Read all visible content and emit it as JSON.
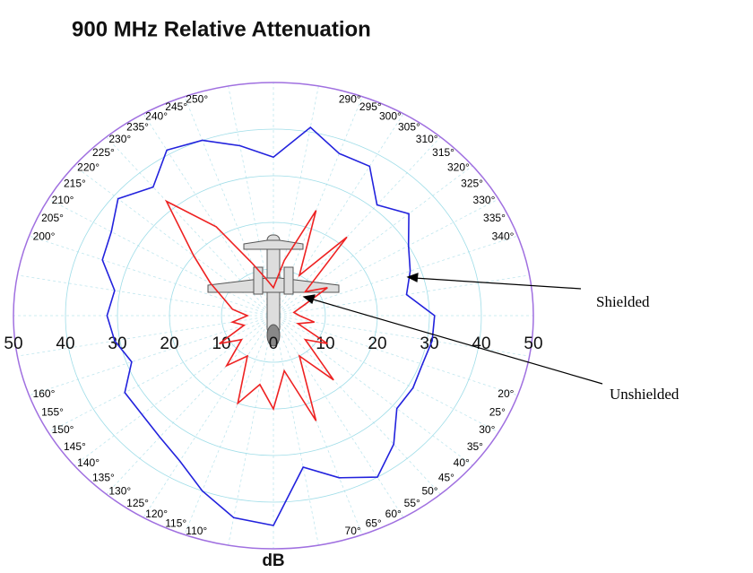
{
  "chart_data": {
    "type": "polar",
    "title": "900 MHz Relative Attenuation",
    "radial_label": "dB",
    "x": [
      0,
      10,
      20,
      30,
      40,
      50,
      60,
      70,
      80,
      90,
      100,
      110,
      120,
      130,
      140,
      150,
      160,
      170,
      180,
      190,
      200,
      210,
      220,
      230,
      240,
      250,
      260,
      270,
      280,
      290,
      300,
      310,
      320,
      330,
      340,
      350
    ],
    "series": [
      {
        "name": "Shielded",
        "color": "#2222dd",
        "values": [
          31,
          31,
          30.5,
          31,
          31,
          36,
          40,
          37,
          33,
          45,
          44,
          40,
          36,
          34,
          33,
          33,
          29,
          31,
          32,
          31,
          35,
          36,
          39,
          36,
          41,
          40,
          37,
          34,
          41,
          37,
          37,
          31,
          34,
          30,
          28,
          26
        ]
      },
      {
        "name": "Unshielded",
        "color": "#ee2222",
        "values": [
          5,
          8,
          5,
          12,
          8,
          18,
          10,
          24,
          12,
          20,
          15,
          20,
          10,
          14,
          8,
          12,
          6,
          8,
          5,
          8,
          10,
          14,
          20,
          32,
          22,
          12,
          8,
          6,
          12,
          24,
          10,
          22,
          8,
          12,
          6,
          4
        ]
      }
    ],
    "rlim": [
      0,
      50
    ],
    "rticks": [
      0,
      10,
      20,
      30,
      40,
      50
    ],
    "grid": true,
    "angle_ticks": [
      {
        "value": 20,
        "label": "20°"
      },
      {
        "value": 25,
        "label": "25°"
      },
      {
        "value": 30,
        "label": "30°"
      },
      {
        "value": 35,
        "label": "35°"
      },
      {
        "value": 40,
        "label": "40°"
      },
      {
        "value": 45,
        "label": "45°"
      },
      {
        "value": 50,
        "label": "50°"
      },
      {
        "value": 55,
        "label": "55°"
      },
      {
        "value": 60,
        "label": "60°"
      },
      {
        "value": 65,
        "label": "65°"
      },
      {
        "value": 70,
        "label": "70°"
      },
      {
        "value": 110,
        "label": "110°"
      },
      {
        "value": 115,
        "label": "115°"
      },
      {
        "value": 120,
        "label": "120°"
      },
      {
        "value": 125,
        "label": "125°"
      },
      {
        "value": 130,
        "label": "130°"
      },
      {
        "value": 135,
        "label": "135°"
      },
      {
        "value": 140,
        "label": "140°"
      },
      {
        "value": 145,
        "label": "145°"
      },
      {
        "value": 150,
        "label": "150°"
      },
      {
        "value": 155,
        "label": "155°"
      },
      {
        "value": 160,
        "label": "160°"
      },
      {
        "value": 200,
        "label": "200°"
      },
      {
        "value": 205,
        "label": "205°"
      },
      {
        "value": 210,
        "label": "210°"
      },
      {
        "value": 215,
        "label": "215°"
      },
      {
        "value": 220,
        "label": "220°"
      },
      {
        "value": 225,
        "label": "225°"
      },
      {
        "value": 230,
        "label": "230°"
      },
      {
        "value": 235,
        "label": "235°"
      },
      {
        "value": 240,
        "label": "240°"
      },
      {
        "value": 245,
        "label": "245°"
      },
      {
        "value": 250,
        "label": "250°"
      },
      {
        "value": 290,
        "label": "290°"
      },
      {
        "value": 295,
        "label": "295°"
      },
      {
        "value": 300,
        "label": "300°"
      },
      {
        "value": 305,
        "label": "305°"
      },
      {
        "value": 310,
        "label": "310°"
      },
      {
        "value": 315,
        "label": "315°"
      },
      {
        "value": 320,
        "label": "320°"
      },
      {
        "value": 325,
        "label": "325°"
      },
      {
        "value": 330,
        "label": "330°"
      },
      {
        "value": 335,
        "label": "335°"
      },
      {
        "value": 340,
        "label": "340°"
      }
    ]
  }
}
